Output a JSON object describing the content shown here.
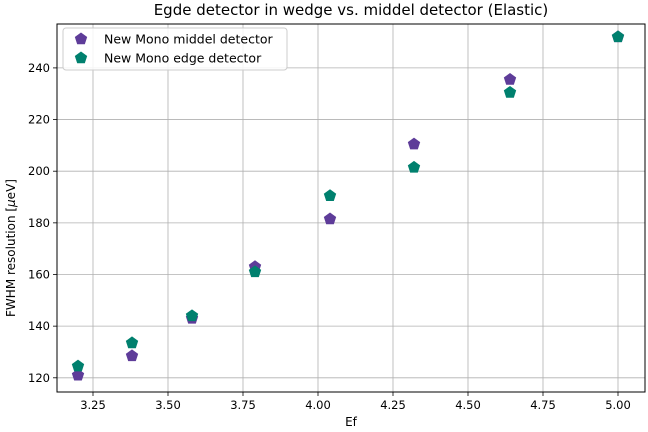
{
  "chart_data": {
    "type": "scatter",
    "title": "Egde detector in wedge vs. middel detector (Elastic)",
    "xlabel": "Ef",
    "ylabel_prefix": "FWHM resolution [",
    "ylabel_unit_mu": "μ",
    "ylabel_unit_rest": "eV]",
    "xlim": [
      3.13,
      5.09
    ],
    "ylim": [
      114.5,
      257
    ],
    "x_ticks": [
      3.25,
      3.5,
      3.75,
      4.0,
      4.25,
      4.5,
      4.75,
      5.0
    ],
    "x_tick_labels": [
      "3.25",
      "3.50",
      "3.75",
      "4.00",
      "4.25",
      "4.50",
      "4.75",
      "5.00"
    ],
    "y_ticks": [
      120,
      140,
      160,
      180,
      200,
      220,
      240
    ],
    "y_tick_labels": [
      "120",
      "140",
      "160",
      "180",
      "200",
      "220",
      "240"
    ],
    "grid": true,
    "legend_position": "top-left",
    "marker": "pentagon",
    "series": [
      {
        "name": "New Mono middel detector",
        "color": "#5e3c99",
        "points": [
          {
            "x": 3.2,
            "y": 121
          },
          {
            "x": 3.38,
            "y": 128.5
          },
          {
            "x": 3.58,
            "y": 143
          },
          {
            "x": 3.79,
            "y": 163
          },
          {
            "x": 4.04,
            "y": 181.5
          },
          {
            "x": 4.32,
            "y": 210.5
          },
          {
            "x": 4.64,
            "y": 235.5
          },
          {
            "x": 5.0,
            "y": 252
          }
        ]
      },
      {
        "name": "New Mono edge detector",
        "color": "#00806e",
        "points": [
          {
            "x": 3.2,
            "y": 124.5
          },
          {
            "x": 3.38,
            "y": 133.5
          },
          {
            "x": 3.58,
            "y": 144
          },
          {
            "x": 3.79,
            "y": 161
          },
          {
            "x": 4.04,
            "y": 190.5
          },
          {
            "x": 4.32,
            "y": 201.5
          },
          {
            "x": 4.64,
            "y": 230.5
          },
          {
            "x": 5.0,
            "y": 252
          }
        ]
      }
    ]
  }
}
